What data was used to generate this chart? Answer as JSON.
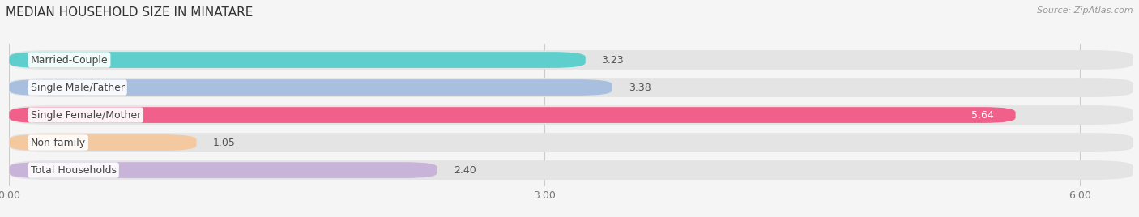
{
  "title": "MEDIAN HOUSEHOLD SIZE IN MINATARE",
  "source": "Source: ZipAtlas.com",
  "categories": [
    "Married-Couple",
    "Single Male/Father",
    "Single Female/Mother",
    "Non-family",
    "Total Households"
  ],
  "values": [
    3.23,
    3.38,
    5.64,
    1.05,
    2.4
  ],
  "bar_colors": [
    "#5ecfcc",
    "#a8bfe0",
    "#f0608a",
    "#f5c9a0",
    "#c8b4d8"
  ],
  "value_colors": [
    "#555555",
    "#555555",
    "#ffffff",
    "#555555",
    "#555555"
  ],
  "value_inside": [
    false,
    false,
    true,
    false,
    false
  ],
  "xlim": [
    0,
    6.3
  ],
  "xticks": [
    0.0,
    3.0,
    6.0
  ],
  "xticklabels": [
    "0.00",
    "3.00",
    "6.00"
  ],
  "label_fontsize": 9,
  "value_fontsize": 9,
  "title_fontsize": 11,
  "background_color": "#f5f5f5",
  "bg_bar_color": "#e4e4e4"
}
